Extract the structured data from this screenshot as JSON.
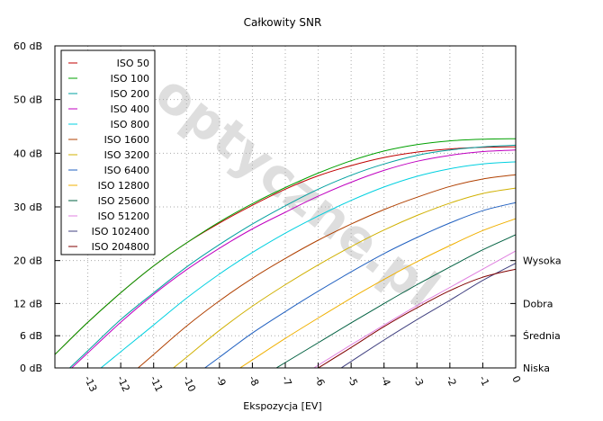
{
  "chart_data": {
    "type": "line",
    "title": "Całkowity SNR",
    "xlabel": "Ekspozycja [EV]",
    "ylabel": "",
    "xlim": [
      -14,
      0
    ],
    "ylim": [
      0,
      60
    ],
    "x_ticks": [
      {
        "value": -13,
        "label": "-13"
      },
      {
        "value": -12,
        "label": "-12"
      },
      {
        "value": -11,
        "label": "-11"
      },
      {
        "value": -10,
        "label": "-10"
      },
      {
        "value": -9,
        "label": "-9"
      },
      {
        "value": -8,
        "label": "-8"
      },
      {
        "value": -7,
        "label": "-7"
      },
      {
        "value": -6,
        "label": "-6"
      },
      {
        "value": -5,
        "label": "-5"
      },
      {
        "value": -4,
        "label": "-4"
      },
      {
        "value": -3,
        "label": "-3"
      },
      {
        "value": -2,
        "label": "-2"
      },
      {
        "value": -1,
        "label": "-1"
      },
      {
        "value": 0,
        "label": "0"
      }
    ],
    "y_ticks": [
      {
        "value": 0,
        "label": "0 dB"
      },
      {
        "value": 6,
        "label": "6 dB"
      },
      {
        "value": 12,
        "label": "12 dB"
      },
      {
        "value": 20,
        "label": "20 dB"
      },
      {
        "value": 30,
        "label": "30 dB"
      },
      {
        "value": 40,
        "label": "40 dB"
      },
      {
        "value": 50,
        "label": "50 dB"
      },
      {
        "value": 60,
        "label": "60 dB"
      }
    ],
    "right_labels": [
      {
        "value": 20,
        "label": "Wysoka"
      },
      {
        "value": 12,
        "label": "Dobra"
      },
      {
        "value": 6,
        "label": "Średnia"
      },
      {
        "value": 0,
        "label": "Niska"
      }
    ],
    "grid": true,
    "legend_position": "top-left",
    "watermark": "optyczne.pl",
    "series": [
      {
        "name": "ISO 50",
        "color": "#c00000",
        "x": [
          -14,
          -13,
          -12,
          -11,
          -10,
          -9,
          -8,
          -7,
          -6,
          -5,
          -4,
          -3,
          -2,
          -1,
          0
        ],
        "y": [
          2.5,
          8.5,
          14.0,
          19.0,
          23.3,
          27.0,
          30.3,
          33.3,
          35.8,
          37.7,
          39.2,
          40.2,
          40.8,
          41.1,
          41.2
        ]
      },
      {
        "name": "ISO 100",
        "color": "#00a000",
        "x": [
          -14,
          -13,
          -12,
          -11,
          -10,
          -9,
          -8,
          -7,
          -6,
          -5,
          -4,
          -3,
          -2,
          -1,
          0
        ],
        "y": [
          2.5,
          8.5,
          14.0,
          19.0,
          23.3,
          27.2,
          30.6,
          33.6,
          36.3,
          38.6,
          40.4,
          41.6,
          42.3,
          42.6,
          42.7
        ]
      },
      {
        "name": "ISO 200",
        "color": "#00a0a0",
        "x": [
          -14,
          -13,
          -12,
          -11,
          -10,
          -9,
          -8,
          -7,
          -6,
          -5,
          -4,
          -3,
          -2,
          -1,
          0
        ],
        "y": [
          null,
          3.2,
          9.0,
          14.0,
          18.8,
          23.0,
          26.8,
          30.2,
          33.3,
          35.9,
          38.0,
          39.6,
          40.6,
          41.2,
          41.5
        ]
      },
      {
        "name": "ISO 400",
        "color": "#c000c0",
        "x": [
          -14,
          -13,
          -12,
          -11,
          -10,
          -9,
          -8,
          -7,
          -6,
          -5,
          -4,
          -3,
          -2,
          -1,
          0
        ],
        "y": [
          null,
          2.8,
          8.5,
          13.7,
          18.3,
          22.3,
          25.9,
          29.0,
          32.0,
          34.6,
          36.8,
          38.5,
          39.6,
          40.3,
          40.6
        ]
      },
      {
        "name": "ISO 800",
        "color": "#00d0e0",
        "x": [
          -14,
          -13,
          -12,
          -11,
          -10,
          -9,
          -8,
          -7,
          -6,
          -5,
          -4,
          -3,
          -2,
          -1,
          0
        ],
        "y": [
          null,
          null,
          null,
          8.0,
          13.0,
          17.5,
          21.5,
          25.1,
          28.3,
          31.2,
          33.7,
          35.7,
          37.1,
          38.0,
          38.4
        ]
      },
      {
        "name": "ISO 1600",
        "color": "#b04000",
        "x": [
          -14,
          -13,
          -12,
          -11,
          -10,
          -9,
          -8,
          -7,
          -6,
          -5,
          -4,
          -3,
          -2,
          -1,
          0
        ],
        "y": [
          null,
          null,
          null,
          2.5,
          7.8,
          12.5,
          16.7,
          20.4,
          23.8,
          26.8,
          29.5,
          31.8,
          33.8,
          35.2,
          36.0
        ]
      },
      {
        "name": "ISO 3200",
        "color": "#d0b000",
        "x": [
          -14,
          -13,
          -12,
          -11,
          -10,
          -9,
          -8,
          -7,
          -6,
          -5,
          -4,
          -3,
          -2,
          -1,
          0
        ],
        "y": [
          null,
          null,
          null,
          null,
          2.0,
          7.0,
          11.5,
          15.5,
          19.2,
          22.6,
          25.7,
          28.4,
          30.7,
          32.5,
          33.5
        ]
      },
      {
        "name": "ISO 6400",
        "color": "#2060c0",
        "x": [
          -14,
          -13,
          -12,
          -11,
          -10,
          -9,
          -8,
          -7,
          -6,
          -5,
          -4,
          -3,
          -2,
          -1,
          0
        ],
        "y": [
          null,
          null,
          null,
          null,
          null,
          2.0,
          6.5,
          10.5,
          14.3,
          17.9,
          21.3,
          24.3,
          27.0,
          29.3,
          30.8
        ]
      },
      {
        "name": "ISO 12800",
        "color": "#f0b000",
        "x": [
          -14,
          -13,
          -12,
          -11,
          -10,
          -9,
          -8,
          -7,
          -6,
          -5,
          -4,
          -3,
          -2,
          -1,
          0
        ],
        "y": [
          null,
          null,
          null,
          null,
          null,
          null,
          1.5,
          5.5,
          9.3,
          13.0,
          16.5,
          19.8,
          22.8,
          25.6,
          27.8
        ]
      },
      {
        "name": "ISO 25600",
        "color": "#006040",
        "x": [
          -14,
          -13,
          -12,
          -11,
          -10,
          -9,
          -8,
          -7,
          -6,
          -5,
          -4,
          -3,
          -2,
          -1,
          0
        ],
        "y": [
          null,
          null,
          null,
          null,
          null,
          null,
          null,
          1.0,
          4.7,
          8.4,
          12.0,
          15.5,
          18.8,
          22.0,
          24.8
        ]
      },
      {
        "name": "ISO 51200",
        "color": "#e080e0",
        "x": [
          -14,
          -13,
          -12,
          -11,
          -10,
          -9,
          -8,
          -7,
          -6,
          -5,
          -4,
          -3,
          -2,
          -1,
          0
        ],
        "y": [
          null,
          null,
          null,
          null,
          null,
          null,
          null,
          null,
          0.5,
          4.3,
          8.0,
          11.6,
          15.0,
          18.4,
          21.8
        ]
      },
      {
        "name": "ISO 102400",
        "color": "#404080",
        "x": [
          -14,
          -13,
          -12,
          -11,
          -10,
          -9,
          -8,
          -7,
          -6,
          -5,
          -4,
          -3,
          -2,
          -1,
          0
        ],
        "y": [
          null,
          null,
          null,
          null,
          null,
          null,
          null,
          null,
          null,
          1.2,
          5.2,
          9.0,
          12.6,
          16.3,
          19.5
        ]
      },
      {
        "name": "ISO 204800",
        "color": "#800000",
        "x": [
          -14,
          -13,
          -12,
          -11,
          -10,
          -9,
          -8,
          -7,
          -6,
          -5,
          -4,
          -3,
          -2,
          -1,
          0
        ],
        "y": [
          null,
          null,
          null,
          null,
          null,
          null,
          null,
          null,
          0.0,
          3.8,
          7.7,
          11.2,
          14.4,
          16.9,
          18.4
        ]
      }
    ]
  }
}
